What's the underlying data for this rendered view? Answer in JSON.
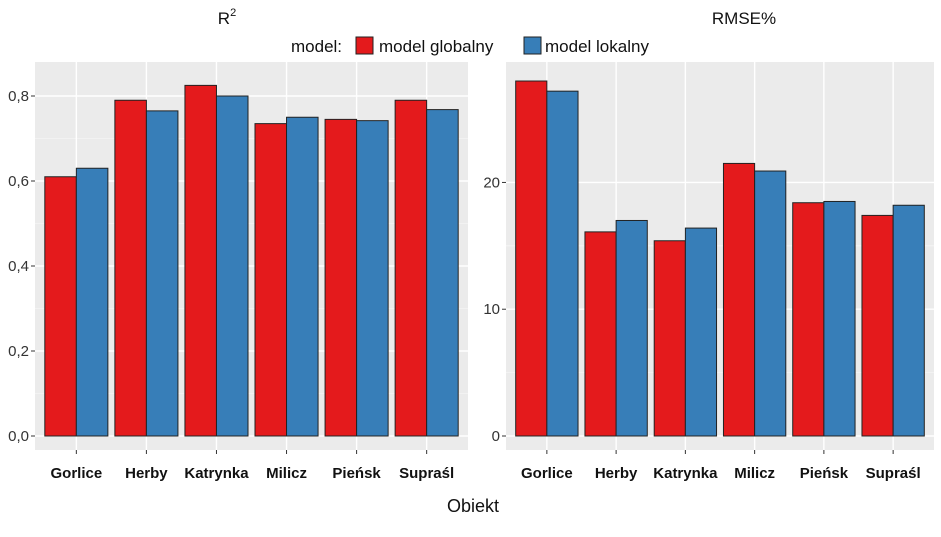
{
  "legend": {
    "title": "model:",
    "items": [
      {
        "label": "model globalny",
        "color": "#e41a1c"
      },
      {
        "label": "model lokalny",
        "color": "#377eb8"
      }
    ]
  },
  "xlabel": "Obiekt",
  "chart_data": [
    {
      "type": "bar",
      "title": "R",
      "title_superscript": "2",
      "categories": [
        "Gorlice",
        "Herby",
        "Katrynka",
        "Milicz",
        "Pieńsk",
        "Supraśl"
      ],
      "series": [
        {
          "name": "model globalny",
          "color": "#e41a1c",
          "values": [
            0.61,
            0.79,
            0.825,
            0.735,
            0.745,
            0.79
          ]
        },
        {
          "name": "model lokalny",
          "color": "#377eb8",
          "values": [
            0.63,
            0.765,
            0.8,
            0.75,
            0.742,
            0.768
          ]
        }
      ],
      "ylim": [
        0,
        0.88
      ],
      "yticks": [
        0,
        0.2,
        0.4,
        0.6,
        0.8
      ],
      "ytick_labels": [
        "0,0",
        "0,2",
        "0,4",
        "0,6",
        "0,8"
      ],
      "grid": true
    },
    {
      "type": "bar",
      "title": "RMSE%",
      "categories": [
        "Gorlice",
        "Herby",
        "Katrynka",
        "Milicz",
        "Pieńsk",
        "Supraśl"
      ],
      "series": [
        {
          "name": "model globalny",
          "color": "#e41a1c",
          "values": [
            28.0,
            16.1,
            15.4,
            21.5,
            18.4,
            17.4
          ]
        },
        {
          "name": "model lokalny",
          "color": "#377eb8",
          "values": [
            27.2,
            17.0,
            16.4,
            20.9,
            18.5,
            18.2
          ]
        }
      ],
      "ylim": [
        0,
        29.5
      ],
      "yticks": [
        0,
        10,
        20
      ],
      "ytick_labels": [
        "0",
        "10",
        "20"
      ],
      "grid": true
    }
  ]
}
